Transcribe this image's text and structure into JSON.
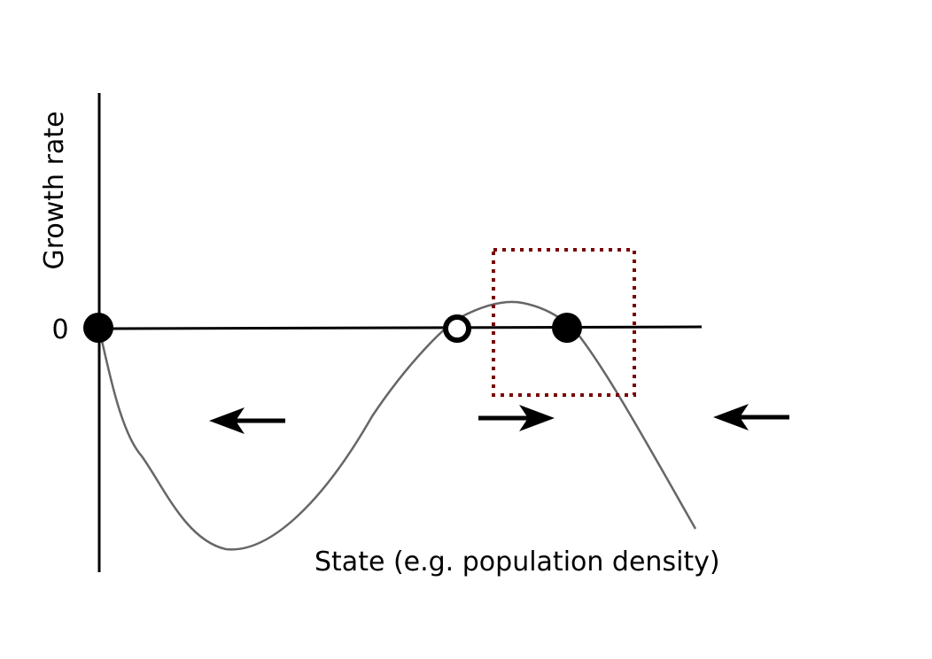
{
  "diagram": {
    "ylabel": "Growth rate",
    "xlabel": "State (e.g. population density)",
    "zero_label": "0",
    "equilibria": [
      {
        "name": "stable",
        "filled": true
      },
      {
        "name": "unstable",
        "filled": false
      },
      {
        "name": "stable",
        "filled": true
      }
    ],
    "flow_arrows": [
      "left",
      "right",
      "left"
    ],
    "highlight_box": {
      "style": "dotted",
      "color": "#7a0000"
    },
    "colors": {
      "axes": "#000000",
      "curve": "#666666",
      "points": "#000000"
    }
  }
}
